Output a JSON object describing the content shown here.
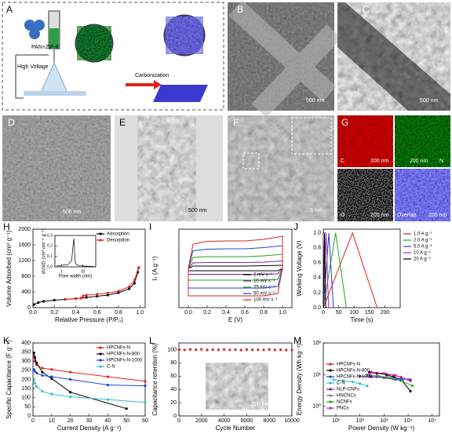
{
  "panels": [
    {
      "label": "A",
      "texts": [
        "PAN+ZIF-8",
        "High Voltage",
        "Carbonization"
      ]
    },
    {
      "label": "B",
      "scale_bar": "500 nm"
    },
    {
      "label": "C",
      "scale_bar": "500 nm"
    },
    {
      "label": "D",
      "scale_bar": "500 nm"
    },
    {
      "label": "E",
      "scale_bar": "500 nm"
    },
    {
      "label": "F",
      "scale_bar": "5 nm"
    },
    {
      "label": "G",
      "maps": [
        {
          "element": "C",
          "scale_bar": "200 nm"
        },
        {
          "element": "N",
          "scale_bar": "200 nm"
        },
        {
          "element": "O",
          "scale_bar": "200 nm"
        },
        {
          "element": "Overlap",
          "scale_bar": "200 nm"
        }
      ]
    }
  ],
  "chart_data": [
    {
      "type": "line",
      "panel": "H",
      "xlabel": "Relative Pressure (P/P₀)",
      "ylabel": "Volume Adsorbed (cm³ g⁻¹)",
      "xlim": [
        0,
        1.05
      ],
      "xticks": [
        {
          "value": 0,
          "label": "0.0"
        },
        {
          "value": 0.2,
          "label": "0.2"
        },
        {
          "value": 0.4,
          "label": "0.4"
        },
        {
          "value": 0.6,
          "label": "0.6"
        },
        {
          "value": 0.8,
          "label": "0.8"
        },
        {
          "value": 1,
          "label": "1.0"
        }
      ],
      "ylim": [
        0,
        2000
      ],
      "yticks": [
        0,
        400,
        800,
        1200,
        1600,
        2000
      ],
      "legend": "upper right",
      "markers": true,
      "series": [
        {
          "name": "Adsorption",
          "color": "#000000",
          "x": [
            0.01,
            0.05,
            0.1,
            0.2,
            0.3,
            0.4,
            0.5,
            0.6,
            0.7,
            0.8,
            0.9,
            0.95,
            0.98,
            0.99
          ],
          "values": [
            80,
            130,
            160,
            190,
            210,
            230,
            260,
            290,
            320,
            380,
            480,
            620,
            900,
            1020
          ]
        },
        {
          "name": "Desorption",
          "color": "#e02020",
          "x": [
            0.99,
            0.95,
            0.9,
            0.8,
            0.7,
            0.6,
            0.5,
            0.47,
            0.45,
            0.4,
            0.3
          ],
          "values": [
            1020,
            700,
            530,
            420,
            370,
            340,
            320,
            300,
            240,
            232,
            212
          ]
        }
      ]
    },
    {
      "type": "line",
      "panel": "",
      "xlabel": "Pore width (nm)",
      "ylabel": "dV/dD (cm³ nm⁻¹ g⁻¹)",
      "xscale": "log",
      "xlim": [
        0.5,
        40
      ],
      "xticks": [
        1,
        10
      ],
      "ylim": [
        0,
        0.3
      ],
      "yticks": [
        {
          "value": 0,
          "label": "0.0"
        },
        {
          "value": 0.1,
          "label": "0.1"
        },
        {
          "value": 0.2,
          "label": "0.2"
        },
        {
          "value": 0.3,
          "label": "0.3"
        }
      ],
      "series": [
        {
          "color": "#000000",
          "x": [
            0.6,
            1,
            2,
            3,
            3.5,
            3.8,
            4,
            4.3,
            5,
            7,
            10,
            20,
            35
          ],
          "values": [
            0.01,
            0.015,
            0.02,
            0.06,
            0.2,
            0.27,
            0.2,
            0.06,
            0.02,
            0.01,
            0.008,
            0.005,
            0.003
          ]
        }
      ]
    },
    {
      "type": "line",
      "panel": "I",
      "xlabel": "E (V)",
      "ylabel": "Iₛ (A g⁻¹)",
      "xlim": [
        -0.1,
        1.1
      ],
      "xticks": [
        {
          "value": 0,
          "label": "0.0"
        },
        {
          "value": 0.2,
          "label": "0.2"
        },
        {
          "value": 0.4,
          "label": "0.4"
        },
        {
          "value": 0.6,
          "label": "0.6"
        },
        {
          "value": 0.8,
          "label": "0.8"
        },
        {
          "value": 1,
          "label": "1.0"
        }
      ],
      "ylim": [
        -10,
        10
      ],
      "legend": "lower right",
      "series": [
        {
          "name": "2 mV s⁻¹",
          "color": "#000000",
          "x": [
            0,
            0.05,
            0.2,
            0.4,
            0.6,
            0.8,
            1,
            1,
            0.95,
            0.8,
            0.6,
            0.4,
            0.2,
            0,
            0
          ],
          "values": [
            0,
            0.6,
            0.6,
            0.6,
            0.6,
            0.7,
            0.8,
            0,
            -0.6,
            -0.6,
            -0.6,
            -0.6,
            -0.6,
            -0.6,
            0
          ]
        },
        {
          "name": "10 mV s⁻¹",
          "color": "#8020a0",
          "x": [
            0,
            0.05,
            0.2,
            0.4,
            0.6,
            0.8,
            1,
            1,
            0.95,
            0.8,
            0.6,
            0.4,
            0.2,
            0,
            0
          ],
          "values": [
            0,
            1.4,
            1.5,
            1.5,
            1.5,
            1.6,
            1.9,
            0,
            -1.4,
            -1.5,
            -1.5,
            -1.5,
            -1.5,
            -1.5,
            0
          ]
        },
        {
          "name": "25 mV s⁻¹",
          "color": "#20a020",
          "x": [
            0,
            0.05,
            0.2,
            0.4,
            0.6,
            0.8,
            1,
            1,
            0.95,
            0.8,
            0.6,
            0.4,
            0.2,
            0,
            0
          ],
          "values": [
            0,
            2.8,
            3,
            3,
            3,
            3.2,
            3.6,
            0,
            -2.8,
            -3,
            -3,
            -3,
            -3,
            -3,
            0
          ]
        },
        {
          "name": "50 mV s⁻¹",
          "color": "#2040e0",
          "x": [
            0,
            0.05,
            0.2,
            0.4,
            0.6,
            0.8,
            1,
            1,
            0.95,
            0.8,
            0.6,
            0.4,
            0.2,
            0,
            0
          ],
          "values": [
            0,
            4.5,
            4.9,
            5,
            5,
            5.3,
            5.8,
            0,
            -4.6,
            -5,
            -5,
            -5,
            -5,
            -5,
            0
          ]
        },
        {
          "name": "100 mV s⁻¹",
          "color": "#e02020",
          "x": [
            0,
            0.05,
            0.2,
            0.4,
            0.6,
            0.8,
            1,
            1,
            0.95,
            0.8,
            0.6,
            0.4,
            0.2,
            0,
            0
          ],
          "values": [
            0,
            6.2,
            6.9,
            7,
            7,
            7.4,
            8.2,
            0,
            -6.4,
            -7,
            -7,
            -7,
            -7,
            -7,
            0
          ]
        }
      ]
    },
    {
      "type": "line",
      "panel": "J",
      "xlabel": "Time (s)",
      "ylabel": "Working Voltage (V)",
      "xlim": [
        0,
        250
      ],
      "xticks": [
        0,
        50,
        100,
        150,
        200
      ],
      "ylim": [
        0,
        1.05
      ],
      "yticks": [
        {
          "value": 0,
          "label": "0.0"
        },
        {
          "value": 0.2,
          "label": "0.2"
        },
        {
          "value": 0.4,
          "label": "0.4"
        },
        {
          "value": 0.6,
          "label": "0.6"
        },
        {
          "value": 0.8,
          "label": "0.8"
        },
        {
          "value": 1,
          "label": "1.0"
        }
      ],
      "legend": "upper right",
      "series": [
        {
          "name": "1.0 A g⁻¹",
          "color": "#e02020",
          "x": [
            0,
            95,
            175
          ],
          "values": [
            0,
            1,
            0
          ]
        },
        {
          "name": "2.0 A g⁻¹",
          "color": "#20a020",
          "x": [
            0,
            40,
            75
          ],
          "values": [
            0,
            1,
            0
          ]
        },
        {
          "name": "5.0 A g⁻¹",
          "color": "#2040e0",
          "x": [
            0,
            18,
            33
          ],
          "values": [
            0,
            1,
            0
          ]
        },
        {
          "name": "10 A g⁻¹",
          "color": "#c020c0",
          "x": [
            0,
            9,
            17
          ],
          "values": [
            0,
            1,
            0
          ]
        },
        {
          "name": "20 A g⁻¹",
          "color": "#000000",
          "x": [
            0,
            4,
            8
          ],
          "values": [
            0,
            1,
            0
          ]
        }
      ]
    },
    {
      "type": "line",
      "panel": "K",
      "xlabel": "Current Density (A g⁻¹)",
      "ylabel": "Specific Capacitance (F g⁻¹)",
      "xlim": [
        0,
        60
      ],
      "xticks": [
        0,
        10,
        20,
        30,
        40,
        50,
        60
      ],
      "ylim": [
        0,
        400
      ],
      "yticks": [
        0,
        50,
        100,
        150,
        200,
        250,
        300,
        350,
        400
      ],
      "legend": "upper right",
      "markers": true,
      "series": [
        {
          "name": "HPCNFs-N",
          "color": "#e02020",
          "x": [
            0.5,
            1,
            2,
            5,
            10,
            20,
            40,
            60
          ],
          "values": [
            330,
            300,
            280,
            262,
            255,
            240,
            215,
            190
          ]
        },
        {
          "name": "HPCNFs-N-800",
          "color": "#000000",
          "x": [
            0.5,
            1,
            2,
            5,
            10,
            20,
            50
          ],
          "values": [
            345,
            320,
            290,
            240,
            205,
            130,
            40
          ]
        },
        {
          "name": "HPCNFs-N-1000",
          "color": "#2040e0",
          "x": [
            0.5,
            1,
            2,
            5,
            10,
            20,
            40,
            60
          ],
          "values": [
            255,
            245,
            235,
            222,
            215,
            200,
            170,
            165
          ]
        },
        {
          "name": "C-N",
          "color": "#30c0c0",
          "x": [
            0.5,
            1,
            2,
            5,
            10,
            20,
            40,
            60
          ],
          "values": [
            200,
            180,
            160,
            135,
            120,
            105,
            90,
            75
          ]
        }
      ]
    },
    {
      "type": "scatter",
      "panel": "L",
      "xlabel": "Cycle Number",
      "ylabel": "Capacitance retention (%)",
      "inset_scale_bar": "200 nm",
      "xlim": [
        0,
        10000
      ],
      "xticks": [
        0,
        2000,
        4000,
        6000,
        8000,
        10000
      ],
      "ylim": [
        0,
        110
      ],
      "yticks": [
        0,
        20,
        40,
        60,
        80,
        100
      ],
      "x": [
        0,
        500,
        1000,
        1500,
        2000,
        2500,
        3000,
        3500,
        4000,
        4500,
        5000,
        5500,
        6000,
        6500,
        7000,
        7500,
        8000,
        8500,
        9000,
        9500,
        10000
      ],
      "series": [
        {
          "color": "#e02020",
          "values": [
            100,
            99.6,
            100.2,
            99.8,
            100.4,
            99.5,
            100,
            99.7,
            100.3,
            99.6,
            100,
            99.4,
            100.1,
            99.7,
            99.9,
            99.5,
            100.2,
            99.6,
            99.8,
            99.4,
            99.3
          ]
        }
      ]
    },
    {
      "type": "line",
      "panel": "M",
      "xlabel": "Power Density (W kg⁻¹)",
      "ylabel": "Energy Density (Wh kg⁻¹)",
      "xscale": "log",
      "yscale": "log",
      "xlim": [
        3,
        200000
      ],
      "xticks": [
        {
          "value": 10,
          "label": "10¹"
        },
        {
          "value": 100,
          "label": "10²"
        },
        {
          "value": 1000,
          "label": "10³"
        },
        {
          "value": 10000,
          "label": "10⁴"
        },
        {
          "value": 100000,
          "label": "10⁵"
        }
      ],
      "ylim": [
        0.5,
        100
      ],
      "yticks": [
        {
          "value": 1,
          "label": "10⁰"
        },
        {
          "value": 10,
          "label": "10¹"
        },
        {
          "value": 100,
          "label": "10²"
        }
      ],
      "legend": "lower left",
      "markers": true,
      "series": [
        {
          "name": "HPCNFs-N",
          "color": "#e02020",
          "x": [
            250,
            500,
            1250,
            2500,
            5000,
            12500
          ],
          "values": [
            11.5,
            11,
            10.4,
            9.6,
            8.4,
            6.4
          ]
        },
        {
          "name": "HPCNFs-N-800",
          "color": "#000000",
          "x": [
            250,
            500,
            1250,
            2500,
            5000,
            12500
          ],
          "values": [
            12,
            11.2,
            10,
            8.4,
            7.2,
            3
          ]
        },
        {
          "name": "HPCNFs-N-1000",
          "color": "#2040e0",
          "x": [
            250,
            500,
            1250,
            2500,
            5000,
            12500
          ],
          "values": [
            8.8,
            8.5,
            8.2,
            7.7,
            7.4,
            7
          ]
        },
        {
          "name": "C-N",
          "color": "#30c0c0",
          "x": [
            8,
            20,
            50,
            100,
            200
          ],
          "values": [
            7,
            6.5,
            5.9,
            5.2,
            4.4
          ]
        },
        {
          "name": "NLP-CNFs",
          "color": "#8020a0",
          "x": [
            100,
            300,
            1000,
            3000
          ],
          "values": [
            9,
            8.5,
            8,
            7
          ]
        },
        {
          "name": "HNCNCs",
          "color": "#808080",
          "x": [
            200,
            600,
            2000,
            6000
          ],
          "values": [
            10,
            9,
            8,
            6.5
          ]
        },
        {
          "name": "NCNFs",
          "color": "#20a020",
          "x": [
            500,
            1500,
            5000,
            15000
          ],
          "values": [
            9,
            8,
            6.5,
            4.5
          ]
        },
        {
          "name": "PNCs",
          "color": "#c020c0",
          "x": [
            300,
            1000,
            3000,
            10000
          ],
          "values": [
            12,
            11,
            9.5,
            7
          ]
        }
      ]
    }
  ]
}
